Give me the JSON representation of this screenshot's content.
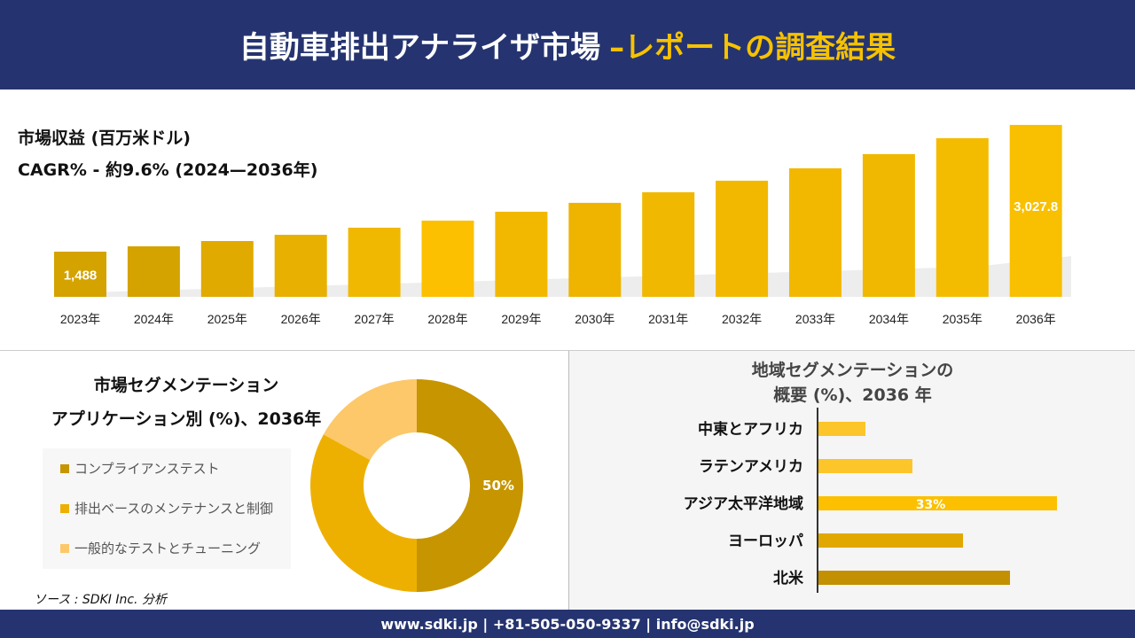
{
  "header": {
    "title": "自動車排出アナライザ市場",
    "title_accent": "–レポートの調査結果"
  },
  "chart_data": [
    {
      "type": "bar",
      "title": "市場収益 (百万米ドル)",
      "subtitle": "CAGR% - 約9.6% (2024—2036年)",
      "categories": [
        "2023年",
        "2024年",
        "2025年",
        "2026年",
        "2027年",
        "2028年",
        "2029年",
        "2030年",
        "2031年",
        "2032年",
        "2033年",
        "2034年",
        "2035年",
        "2036年"
      ],
      "values": [
        1488,
        1553,
        1617,
        1693,
        1779,
        1865,
        1973,
        2081,
        2210,
        2350,
        2501,
        2673,
        2867,
        3027.8
      ],
      "data_labels": {
        "0": "1,488",
        "13": "3,027.8"
      },
      "colors": [
        "#d4a300",
        "#d4a300",
        "#e0aa00",
        "#e8b000",
        "#f0b800",
        "#fcc000",
        "#f2b800",
        "#eeb400",
        "#f0b800",
        "#f2b800",
        "#f2b800",
        "#f0b800",
        "#f4bc00",
        "#f8c000"
      ],
      "grid": false
    },
    {
      "type": "pie",
      "donut": true,
      "title": "市場セグメンテーション",
      "subtitle": "アプリケーション別 (%)、2036年",
      "categories": [
        "コンプライアンステスト",
        "排出ベースのメンテナンスと制御",
        "一般的なテストとチューニング"
      ],
      "values": [
        50,
        33,
        17
      ],
      "data_labels": {
        "0": "50%"
      },
      "colors": [
        "#c69500",
        "#eeb000",
        "#fcc86a"
      ],
      "legend": "left"
    },
    {
      "type": "bar",
      "orientation": "horizontal",
      "title": "地域セグメンテーションの",
      "subtitle": "概要 (%)、2036 年",
      "categories": [
        "中東とアフリカ",
        "ラテンアメリカ",
        "アジア太平洋地域",
        "ヨーロッパ",
        "北米"
      ],
      "values": [
        6.5,
        13,
        33,
        20,
        26.5
      ],
      "data_labels": {
        "2": "33%"
      },
      "colors": [
        "#fcc52a",
        "#fcc52a",
        "#fcc000",
        "#e0a800",
        "#c29000"
      ]
    }
  ],
  "source": "ソース : SDKI Inc. 分析",
  "footer": "www.sdki.jp | +81-505-050-9337 | info@sdki.jp"
}
